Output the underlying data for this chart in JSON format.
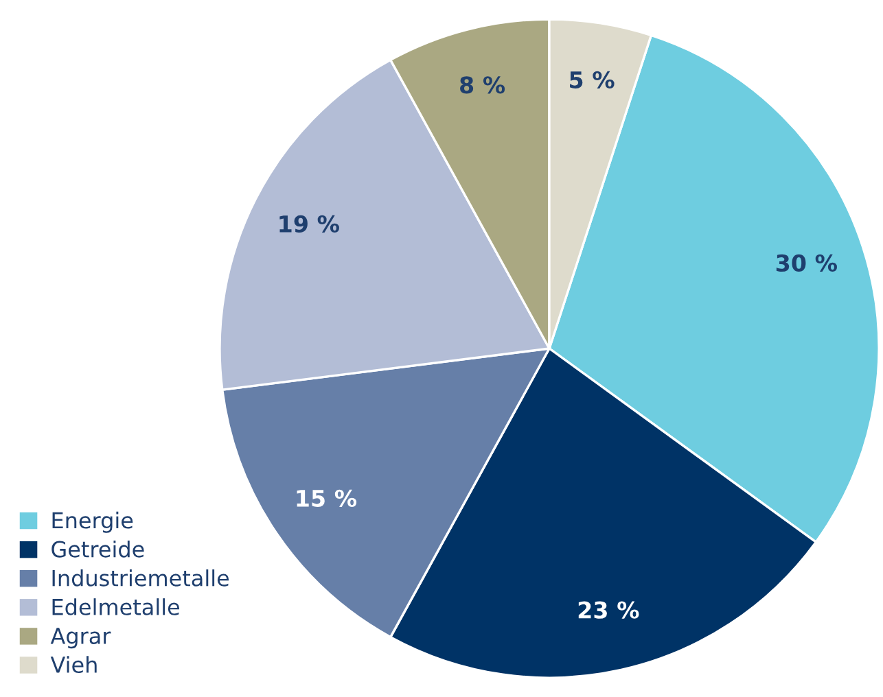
{
  "chart_data": {
    "type": "pie",
    "categories": [
      "Energie",
      "Getreide",
      "Industriemetalle",
      "Edelmetalle",
      "Agrar",
      "Vieh"
    ],
    "values": [
      30,
      23,
      15,
      19,
      8,
      5
    ],
    "colors": [
      "#6ecde0",
      "#003366",
      "#667fa8",
      "#b3bdd6",
      "#aaa882",
      "#dedbcc"
    ],
    "value_labels": [
      "30 %",
      "23 %",
      "15 %",
      "19 %",
      "8 %",
      "5 %"
    ],
    "legend": "bottom left"
  }
}
